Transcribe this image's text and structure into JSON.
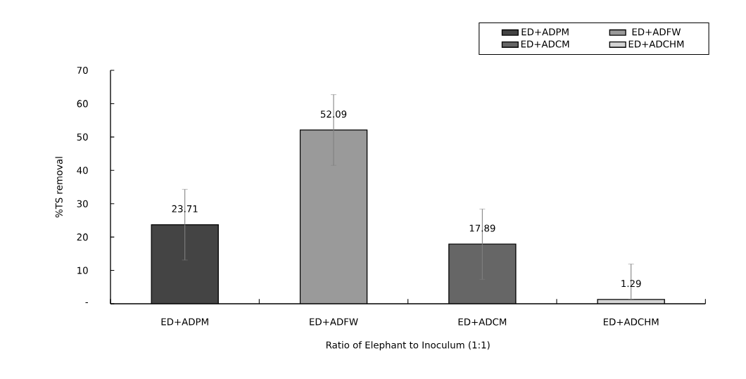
{
  "chart_data": {
    "type": "bar",
    "xlabel": "Ratio of Elephant to Inoculum (1:1)",
    "ylabel": "%TS removal",
    "categories": [
      "ED+ADPM",
      "ED+ADFW",
      "ED+ADCM",
      "ED+ADCHM"
    ],
    "series": [
      {
        "name": "ED+ADPM",
        "color": "#444444",
        "values": [
          23.71,
          null,
          null,
          null
        ],
        "errors": [
          [
            13.1,
            34.3
          ],
          null,
          null,
          null
        ]
      },
      {
        "name": "ED+ADFW",
        "color": "#9a9a9a",
        "values": [
          null,
          52.09,
          null,
          null
        ],
        "errors": [
          null,
          [
            41.5,
            62.7
          ],
          null,
          null
        ]
      },
      {
        "name": "ED+ADCM",
        "color": "#666666",
        "values": [
          null,
          null,
          17.89,
          null
        ],
        "errors": [
          null,
          null,
          [
            7.3,
            28.4
          ],
          null
        ]
      },
      {
        "name": "ED+ADCHM",
        "color": "#d4d4d4",
        "values": [
          null,
          null,
          null,
          1.29
        ],
        "errors": [
          null,
          null,
          null,
          [
            1.29,
            11.9
          ]
        ]
      }
    ],
    "ylim": [
      0,
      70
    ],
    "yticks": [
      {
        "value": 0,
        "label": "-"
      },
      10,
      20,
      30,
      40,
      50,
      60,
      70
    ],
    "data_labels": true,
    "grid": false,
    "legend": "top right"
  }
}
